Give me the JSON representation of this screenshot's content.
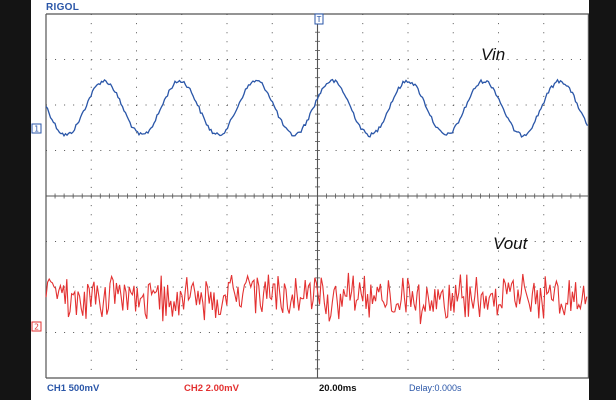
{
  "header": {
    "brand": "RIGOL"
  },
  "channels": [
    {
      "id": "ch1",
      "marker": "1",
      "trace_label": "Vin",
      "color": "#2a56a8",
      "status": "CH1 500mV"
    },
    {
      "id": "ch2",
      "marker": "2",
      "trace_label": "Vout",
      "color": "#e33131",
      "status": "CH2 2.00mV"
    }
  ],
  "trigger": {
    "marker": "T"
  },
  "footer": {
    "timebase": "20.00ms",
    "delay": "Delay:0.000s"
  },
  "colors": {
    "grid": "#555555",
    "background": "#ffffff",
    "bezel": "#141414"
  }
}
